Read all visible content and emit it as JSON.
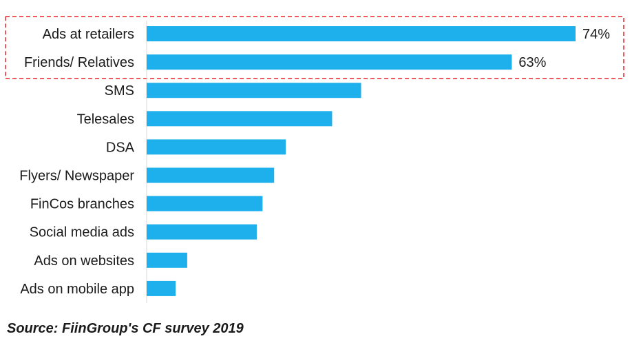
{
  "chart_data": {
    "type": "bar",
    "orientation": "horizontal",
    "categories": [
      "Ads at retailers",
      "Friends/ Relatives",
      "SMS",
      "Telesales",
      "DSA",
      "Flyers/ Newspaper",
      "FinCos branches",
      "Social media ads",
      "Ads on websites",
      "Ads on mobile app"
    ],
    "values": [
      74,
      63,
      37,
      32,
      24,
      22,
      20,
      19,
      7,
      5
    ],
    "value_labels": [
      "74%",
      "63%",
      "",
      "",
      "",
      "",
      "",
      "",
      "",
      ""
    ],
    "unit": "%",
    "xlim": [
      0,
      80
    ],
    "grid": false,
    "bar_color": "#1eb0ec",
    "highlight": {
      "categories": [
        "Ads at retailers",
        "Friends/ Relatives"
      ],
      "color": "#e8202a",
      "style": "dashed"
    }
  },
  "source": "Source: FiinGroup's CF survey 2019"
}
